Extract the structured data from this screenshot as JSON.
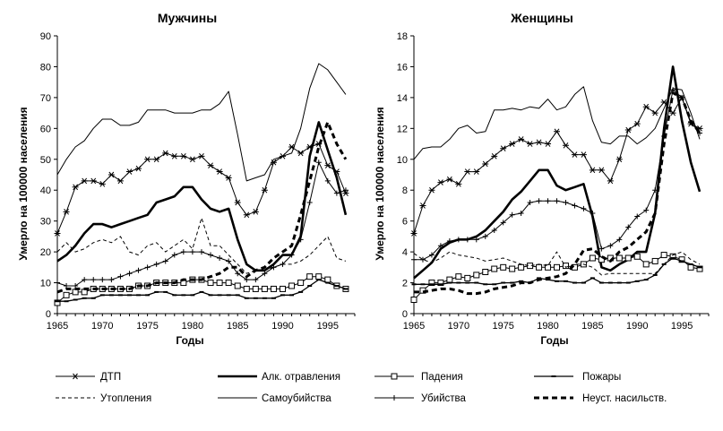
{
  "chart_data": [
    {
      "type": "line",
      "title": "Мужчины",
      "xlabel": "Годы",
      "ylabel": "Умерло на 100000 населения",
      "xlim": [
        1965,
        1998
      ],
      "ylim": [
        0,
        90
      ],
      "xticks": [
        "1965",
        "1970",
        "1975",
        "1980",
        "1985",
        "1990",
        "1995"
      ],
      "yticks": [
        "0",
        "10",
        "20",
        "30",
        "40",
        "50",
        "60",
        "70",
        "80",
        "90"
      ],
      "x": [
        1965,
        1966,
        1967,
        1968,
        1969,
        1970,
        1971,
        1972,
        1973,
        1974,
        1975,
        1976,
        1977,
        1978,
        1979,
        1980,
        1981,
        1982,
        1983,
        1984,
        1985,
        1986,
        1987,
        1988,
        1989,
        1990,
        1991,
        1992,
        1993,
        1994,
        1995,
        1996,
        1997
      ],
      "series": [
        {
          "name": "ДТП",
          "values": [
            26,
            33,
            41,
            43,
            43,
            42,
            45,
            43,
            46,
            47,
            50,
            50,
            52,
            51,
            51,
            50,
            51,
            48,
            46,
            44,
            36,
            32,
            33,
            40,
            49,
            51,
            54,
            52,
            54,
            55,
            48,
            46,
            39
          ]
        },
        {
          "name": "Алк. отравления",
          "values": [
            17,
            19,
            22,
            26,
            29,
            29,
            28,
            29,
            30,
            31,
            32,
            36,
            37,
            38,
            41,
            41,
            37,
            34,
            33,
            34,
            24,
            16,
            14,
            14,
            16,
            19,
            19,
            25,
            51,
            62,
            53,
            44,
            32
          ]
        },
        {
          "name": "Падения",
          "values": [
            3.5,
            6,
            7,
            7,
            8,
            8,
            8,
            8,
            8,
            9,
            9,
            10,
            10,
            10,
            10,
            11,
            11,
            10,
            10,
            10,
            9,
            8,
            8,
            8,
            8,
            8,
            9,
            10,
            12,
            12,
            11,
            9,
            8
          ]
        },
        {
          "name": "Пожары",
          "values": [
            4,
            4,
            4.5,
            5,
            5,
            6,
            6,
            6,
            6,
            6,
            6,
            7,
            7,
            6,
            6,
            6,
            7,
            6,
            6,
            6,
            6,
            5,
            5,
            5,
            5,
            6,
            6,
            7,
            9,
            11,
            10,
            9,
            8
          ]
        },
        {
          "name": "Утопления",
          "values": [
            20,
            23,
            20,
            21,
            23,
            24,
            23,
            25,
            20,
            19,
            22,
            23,
            20,
            22,
            24,
            21,
            31,
            22,
            22,
            19,
            16,
            13,
            14,
            14,
            15,
            16,
            16,
            17,
            19,
            22,
            25,
            18,
            17
          ]
        },
        {
          "name": "Самоубийства",
          "values": [
            45,
            50,
            54,
            56,
            60,
            63,
            63,
            61,
            61,
            62,
            66,
            66,
            66,
            65,
            65,
            65,
            66,
            66,
            68,
            72,
            58,
            43,
            44,
            45,
            50,
            51,
            52,
            60,
            73,
            81,
            79,
            75,
            71
          ]
        },
        {
          "name": "Убийства",
          "values": [
            10,
            9,
            9,
            11,
            11,
            11,
            11,
            12,
            13,
            14,
            15,
            16,
            17,
            19,
            20,
            20,
            20,
            19,
            18,
            17,
            13,
            11,
            11,
            13,
            15,
            16,
            19,
            24,
            36,
            49,
            43,
            39,
            40
          ]
        },
        {
          "name": "Неуст. насильств.",
          "values": [
            7,
            8,
            8,
            8,
            8,
            8,
            8,
            8,
            8,
            9,
            9,
            10,
            10,
            10,
            11,
            11,
            11,
            12,
            13,
            15,
            15,
            12,
            14,
            15,
            18,
            20,
            22,
            32,
            43,
            54,
            62,
            55,
            50
          ]
        }
      ]
    },
    {
      "type": "line",
      "title": "Женщины",
      "xlabel": "Годы",
      "ylabel": "Умерло на 100000 населения",
      "xlim": [
        1965,
        1998
      ],
      "ylim": [
        0,
        18
      ],
      "xticks": [
        "1965",
        "1970",
        "1975",
        "1980",
        "1985",
        "1990",
        "1995"
      ],
      "yticks": [
        "0",
        "2",
        "4",
        "6",
        "8",
        "10",
        "12",
        "14",
        "16",
        "18"
      ],
      "x": [
        1965,
        1966,
        1967,
        1968,
        1969,
        1970,
        1971,
        1972,
        1973,
        1974,
        1975,
        1976,
        1977,
        1978,
        1979,
        1980,
        1981,
        1982,
        1983,
        1984,
        1985,
        1986,
        1987,
        1988,
        1989,
        1990,
        1991,
        1992,
        1993,
        1994,
        1995,
        1996,
        1997
      ],
      "series": [
        {
          "name": "ДТП",
          "values": [
            5.2,
            7,
            8,
            8.5,
            8.7,
            8.4,
            9.2,
            9.2,
            9.7,
            10.2,
            10.7,
            11,
            11.3,
            11,
            11.1,
            11,
            11.8,
            10.9,
            10.3,
            10.3,
            9.3,
            9.3,
            8.6,
            10,
            11.9,
            12.3,
            13.4,
            13,
            13.7,
            13,
            14,
            12.3,
            12
          ]
        },
        {
          "name": "Алк. отравления",
          "values": [
            2.3,
            2.8,
            3.3,
            4.2,
            4.6,
            4.8,
            4.8,
            5,
            5.4,
            6,
            6.6,
            7.4,
            7.9,
            8.6,
            9.3,
            9.3,
            8.3,
            8,
            8.2,
            8.4,
            6.3,
            3,
            2.8,
            3.2,
            3.5,
            4,
            4,
            6.5,
            12,
            16,
            12.5,
            9.8,
            7.9
          ]
        },
        {
          "name": "Падения",
          "values": [
            0.9,
            1.5,
            2,
            2,
            2.2,
            2.4,
            2.3,
            2.5,
            2.7,
            2.9,
            3,
            2.9,
            3,
            3.1,
            3,
            3,
            3,
            3.1,
            3,
            3.2,
            3.6,
            3.5,
            3.6,
            3.6,
            3.6,
            3.7,
            3.2,
            3.4,
            3.8,
            3.7,
            3.5,
            3,
            2.9
          ]
        },
        {
          "name": "Пожары",
          "values": [
            1.9,
            1.9,
            1.9,
            1.9,
            2,
            2,
            2,
            2,
            1.9,
            1.9,
            2,
            2,
            2.1,
            2,
            2.3,
            2.2,
            2.1,
            2.1,
            2,
            2,
            2.3,
            2,
            2,
            2,
            2,
            2.1,
            2.2,
            2.5,
            3.2,
            3.6,
            3.4,
            3.2,
            3
          ]
        },
        {
          "name": "Утопления",
          "values": [
            3.9,
            3.5,
            3.3,
            3.6,
            4,
            3.8,
            3.7,
            3.6,
            3.4,
            3.5,
            3.6,
            3.4,
            3.2,
            3.1,
            3.2,
            3.1,
            4,
            3,
            3.2,
            3.2,
            3,
            2.5,
            2.6,
            2.6,
            2.6,
            2.6,
            2.6,
            2.6,
            3.2,
            3.8,
            4,
            3.5,
            3.2
          ]
        },
        {
          "name": "Самоубийства",
          "values": [
            10,
            10.7,
            10.8,
            10.8,
            11.3,
            12,
            12.2,
            11.7,
            11.8,
            13.2,
            13.2,
            13.3,
            13.2,
            13.4,
            13.3,
            13.9,
            13.2,
            13.4,
            14.2,
            14.7,
            12.5,
            11.1,
            11,
            11.5,
            11.5,
            11,
            11.4,
            12,
            13.3,
            14.6,
            14.5,
            13,
            11.3
          ]
        },
        {
          "name": "Убийства",
          "values": [
            3.5,
            3.5,
            3.8,
            4.4,
            4.7,
            4.8,
            4.8,
            4.8,
            5,
            5.4,
            5.9,
            6.4,
            6.5,
            7.2,
            7.3,
            7.3,
            7.3,
            7.2,
            7,
            6.8,
            6.5,
            4.2,
            4.4,
            4.8,
            5.6,
            6.3,
            6.7,
            8,
            11.5,
            14.5,
            14,
            12.4,
            11.7
          ]
        },
        {
          "name": "Неуст. насильств.",
          "values": [
            1.4,
            1.4,
            1.5,
            1.6,
            1.6,
            1.5,
            1.3,
            1.3,
            1.4,
            1.6,
            1.7,
            1.8,
            2,
            2,
            2.2,
            2.3,
            2.4,
            2.6,
            3.2,
            4.1,
            4.2,
            3.7,
            3.4,
            4,
            4.3,
            4.8,
            5.3,
            6.5,
            11,
            14.3,
            14,
            12.5,
            11.7
          ]
        }
      ]
    }
  ],
  "legend": {
    "items": [
      {
        "label": "ДТП",
        "style": "asterisk"
      },
      {
        "label": "Алк. отравления",
        "style": "bold"
      },
      {
        "label": "Падения",
        "style": "square"
      },
      {
        "label": "Пожары",
        "style": "dash-marker"
      },
      {
        "label": "Утопления",
        "style": "dashed"
      },
      {
        "label": "Самоубийства",
        "style": "plain"
      },
      {
        "label": "Убийства",
        "style": "plus"
      },
      {
        "label": "Неуст. насильств.",
        "style": "bold-dashed"
      }
    ]
  },
  "series_styles": [
    "asterisk",
    "bold",
    "square",
    "dash-marker",
    "dashed",
    "plain",
    "plus",
    "bold-dashed"
  ]
}
